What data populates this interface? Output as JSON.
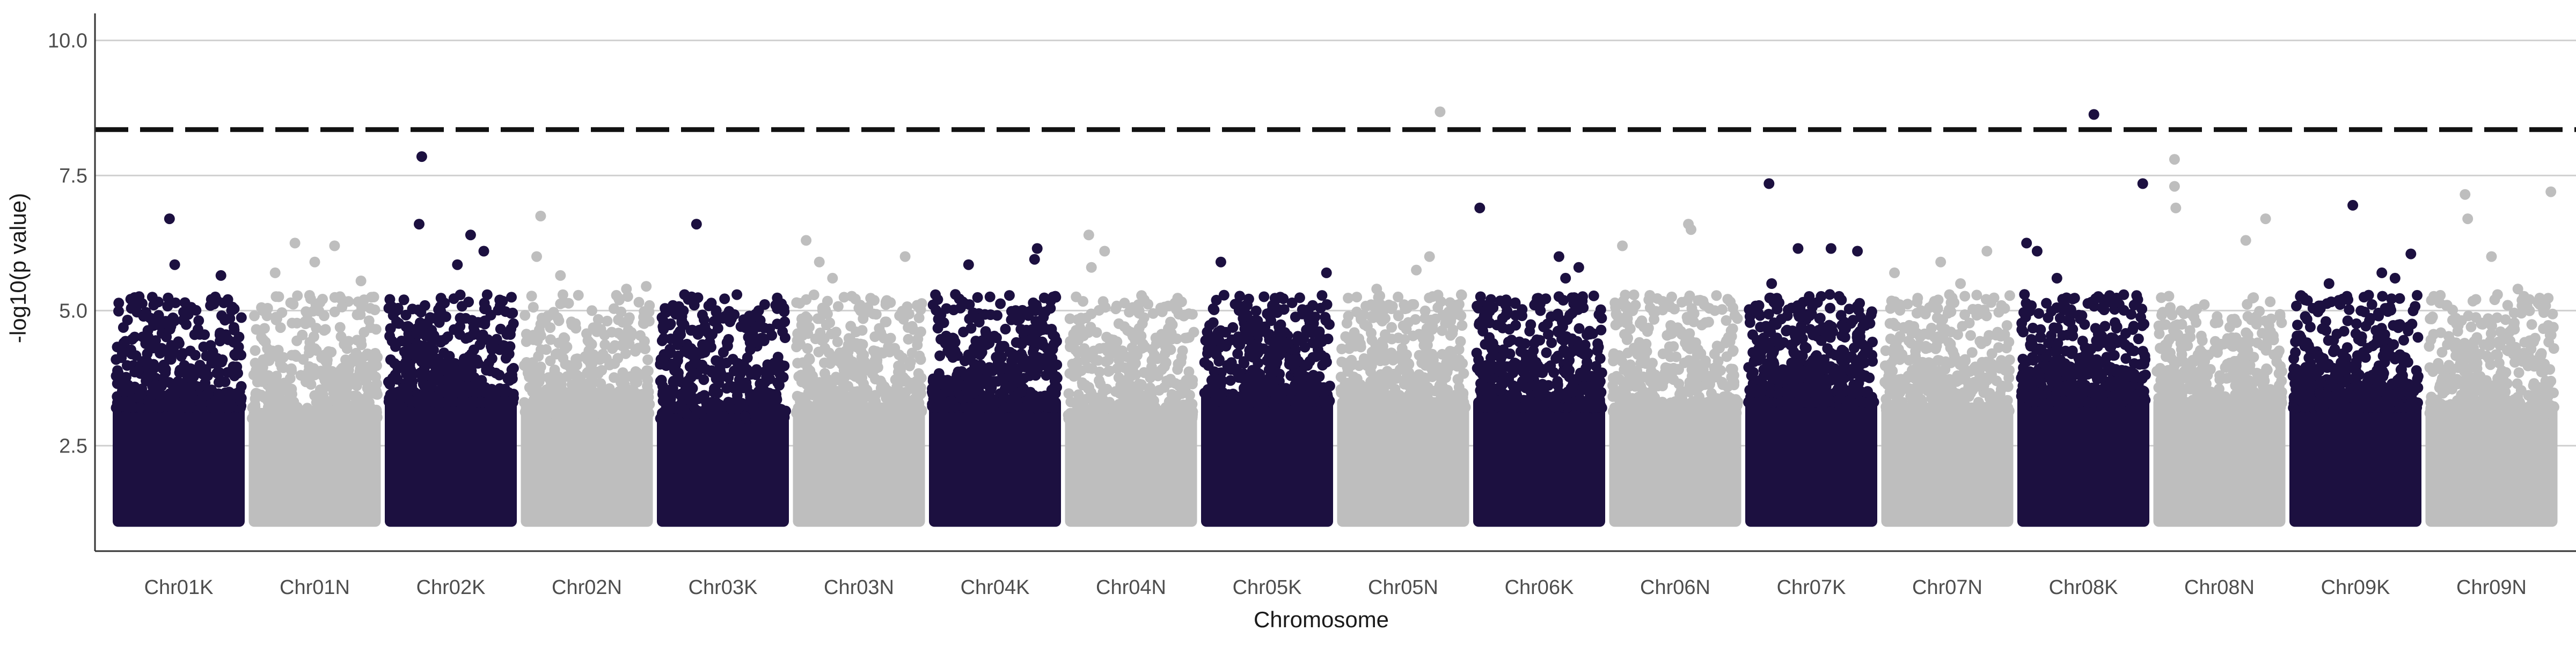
{
  "colors": {
    "K": "#1c1040",
    "N": "#bebebe",
    "grid": "#d0d0d0",
    "axis": "#333333",
    "threshold": "#111111"
  },
  "chart_data": {
    "type": "scatter",
    "subtype": "manhattan",
    "title": "",
    "xlabel": "Chromosome",
    "ylabel": "-log10(p value)",
    "ylim": [
      0.55,
      10.5
    ],
    "y_ticks": [
      2.5,
      5.0,
      7.5,
      10.0
    ],
    "y_tick_labels": [
      "2.5",
      "5.0",
      "7.5",
      "10.0"
    ],
    "grid": "horizontal major gridlines only",
    "legend": "none",
    "threshold": {
      "value": 8.35,
      "style": "dashed"
    },
    "categories": [
      "Chr01K",
      "Chr01N",
      "Chr02K",
      "Chr02N",
      "Chr03K",
      "Chr03N",
      "Chr04K",
      "Chr04N",
      "Chr05K",
      "Chr05N",
      "Chr06K",
      "Chr06N",
      "Chr07K",
      "Chr07N",
      "Chr08K",
      "Chr08N",
      "Chr09K",
      "Chr09N"
    ],
    "series": [
      {
        "subgenome": "K",
        "color": "#1c1040"
      },
      {
        "subgenome": "N",
        "color": "#bebebe"
      }
    ],
    "chromosomes": [
      {
        "name": "Chr01K",
        "subgenome": "K",
        "min_p": 1.0,
        "dense_max": 3.4,
        "max": 6.7,
        "top_points": [
          [
            0.43,
            6.7
          ],
          [
            0.47,
            5.85
          ],
          [
            0.82,
            5.65
          ],
          [
            0.3,
            5.25
          ],
          [
            0.9,
            5.0
          ]
        ]
      },
      {
        "name": "Chr01N",
        "subgenome": "N",
        "min_p": 1.0,
        "dense_max": 3.2,
        "max": 6.3,
        "top_points": [
          [
            0.35,
            6.25
          ],
          [
            0.65,
            6.2
          ],
          [
            0.5,
            5.9
          ],
          [
            0.2,
            5.7
          ],
          [
            0.85,
            5.55
          ]
        ]
      },
      {
        "name": "Chr02K",
        "subgenome": "K",
        "min_p": 1.0,
        "dense_max": 3.5,
        "max": 7.9,
        "top_points": [
          [
            0.28,
            7.85
          ],
          [
            0.26,
            6.6
          ],
          [
            0.65,
            6.4
          ],
          [
            0.75,
            6.1
          ],
          [
            0.55,
            5.85
          ]
        ]
      },
      {
        "name": "Chr02N",
        "subgenome": "N",
        "min_p": 1.0,
        "dense_max": 3.3,
        "max": 6.75,
        "top_points": [
          [
            0.15,
            6.75
          ],
          [
            0.12,
            6.0
          ],
          [
            0.3,
            5.65
          ],
          [
            0.8,
            5.4
          ],
          [
            0.95,
            5.45
          ]
        ]
      },
      {
        "name": "Chr03K",
        "subgenome": "K",
        "min_p": 1.0,
        "dense_max": 3.2,
        "max": 6.6,
        "top_points": [
          [
            0.3,
            6.6
          ],
          [
            0.9,
            5.1
          ],
          [
            0.45,
            5.0
          ],
          [
            0.15,
            4.95
          ],
          [
            0.7,
            4.9
          ]
        ]
      },
      {
        "name": "Chr03N",
        "subgenome": "N",
        "min_p": 1.0,
        "dense_max": 3.3,
        "max": 6.3,
        "top_points": [
          [
            0.1,
            6.3
          ],
          [
            0.2,
            5.9
          ],
          [
            0.85,
            6.0
          ],
          [
            0.3,
            5.6
          ],
          [
            0.6,
            5.2
          ]
        ]
      },
      {
        "name": "Chr04K",
        "subgenome": "K",
        "min_p": 1.0,
        "dense_max": 3.4,
        "max": 6.2,
        "top_points": [
          [
            0.82,
            6.15
          ],
          [
            0.3,
            5.85
          ],
          [
            0.8,
            5.95
          ],
          [
            0.2,
            5.3
          ],
          [
            0.65,
            4.95
          ]
        ]
      },
      {
        "name": "Chr04N",
        "subgenome": "N",
        "min_p": 1.0,
        "dense_max": 3.2,
        "max": 6.4,
        "top_points": [
          [
            0.18,
            6.4
          ],
          [
            0.3,
            6.1
          ],
          [
            0.2,
            5.8
          ],
          [
            0.6,
            5.2
          ],
          [
            0.9,
            4.9
          ]
        ]
      },
      {
        "name": "Chr05K",
        "subgenome": "K",
        "min_p": 1.0,
        "dense_max": 3.5,
        "max": 5.9,
        "top_points": [
          [
            0.15,
            5.9
          ],
          [
            0.95,
            5.7
          ],
          [
            0.6,
            5.25
          ],
          [
            0.35,
            5.1
          ],
          [
            0.8,
            5.0
          ]
        ]
      },
      {
        "name": "Chr05N",
        "subgenome": "N",
        "min_p": 1.0,
        "dense_max": 3.4,
        "max": 8.7,
        "top_points": [
          [
            0.78,
            8.68
          ],
          [
            0.7,
            6.0
          ],
          [
            0.6,
            5.75
          ],
          [
            0.3,
            5.4
          ],
          [
            0.9,
            5.1
          ]
        ]
      },
      {
        "name": "Chr06K",
        "subgenome": "K",
        "min_p": 1.0,
        "dense_max": 3.4,
        "max": 6.9,
        "top_points": [
          [
            0.05,
            6.9
          ],
          [
            0.65,
            6.0
          ],
          [
            0.8,
            5.8
          ],
          [
            0.25,
            5.2
          ],
          [
            0.7,
            5.6
          ]
        ]
      },
      {
        "name": "Chr06N",
        "subgenome": "N",
        "min_p": 1.0,
        "dense_max": 3.3,
        "max": 6.6,
        "top_points": [
          [
            0.6,
            6.6
          ],
          [
            0.1,
            6.2
          ],
          [
            0.62,
            6.5
          ],
          [
            0.3,
            5.2
          ],
          [
            0.8,
            5.0
          ]
        ]
      },
      {
        "name": "Chr07K",
        "subgenome": "K",
        "min_p": 1.0,
        "dense_max": 3.5,
        "max": 7.35,
        "top_points": [
          [
            0.18,
            7.35
          ],
          [
            0.4,
            6.15
          ],
          [
            0.65,
            6.15
          ],
          [
            0.85,
            6.1
          ],
          [
            0.2,
            5.5
          ]
        ]
      },
      {
        "name": "Chr07N",
        "subgenome": "N",
        "min_p": 1.0,
        "dense_max": 3.3,
        "max": 6.1,
        "top_points": [
          [
            0.8,
            6.1
          ],
          [
            0.45,
            5.9
          ],
          [
            0.1,
            5.7
          ],
          [
            0.6,
            5.5
          ],
          [
            0.3,
            5.0
          ]
        ]
      },
      {
        "name": "Chr08K",
        "subgenome": "K",
        "min_p": 1.0,
        "dense_max": 3.5,
        "max": 8.65,
        "top_points": [
          [
            0.58,
            8.63
          ],
          [
            0.95,
            7.35
          ],
          [
            0.07,
            6.25
          ],
          [
            0.15,
            6.1
          ],
          [
            0.3,
            5.6
          ]
        ]
      },
      {
        "name": "Chr08N",
        "subgenome": "N",
        "min_p": 1.0,
        "dense_max": 3.4,
        "max": 7.8,
        "top_points": [
          [
            0.16,
            7.8
          ],
          [
            0.16,
            7.3
          ],
          [
            0.17,
            6.9
          ],
          [
            0.85,
            6.7
          ],
          [
            0.7,
            6.3
          ]
        ]
      },
      {
        "name": "Chr09K",
        "subgenome": "K",
        "min_p": 1.0,
        "dense_max": 3.4,
        "max": 6.95,
        "top_points": [
          [
            0.48,
            6.95
          ],
          [
            0.92,
            6.05
          ],
          [
            0.7,
            5.7
          ],
          [
            0.8,
            5.6
          ],
          [
            0.3,
            5.5
          ]
        ]
      },
      {
        "name": "Chr09N",
        "subgenome": "N",
        "min_p": 1.0,
        "dense_max": 3.3,
        "max": 7.2,
        "top_points": [
          [
            0.3,
            7.15
          ],
          [
            0.95,
            7.2
          ],
          [
            0.32,
            6.7
          ],
          [
            0.5,
            6.0
          ],
          [
            0.7,
            5.4
          ]
        ]
      }
    ]
  }
}
